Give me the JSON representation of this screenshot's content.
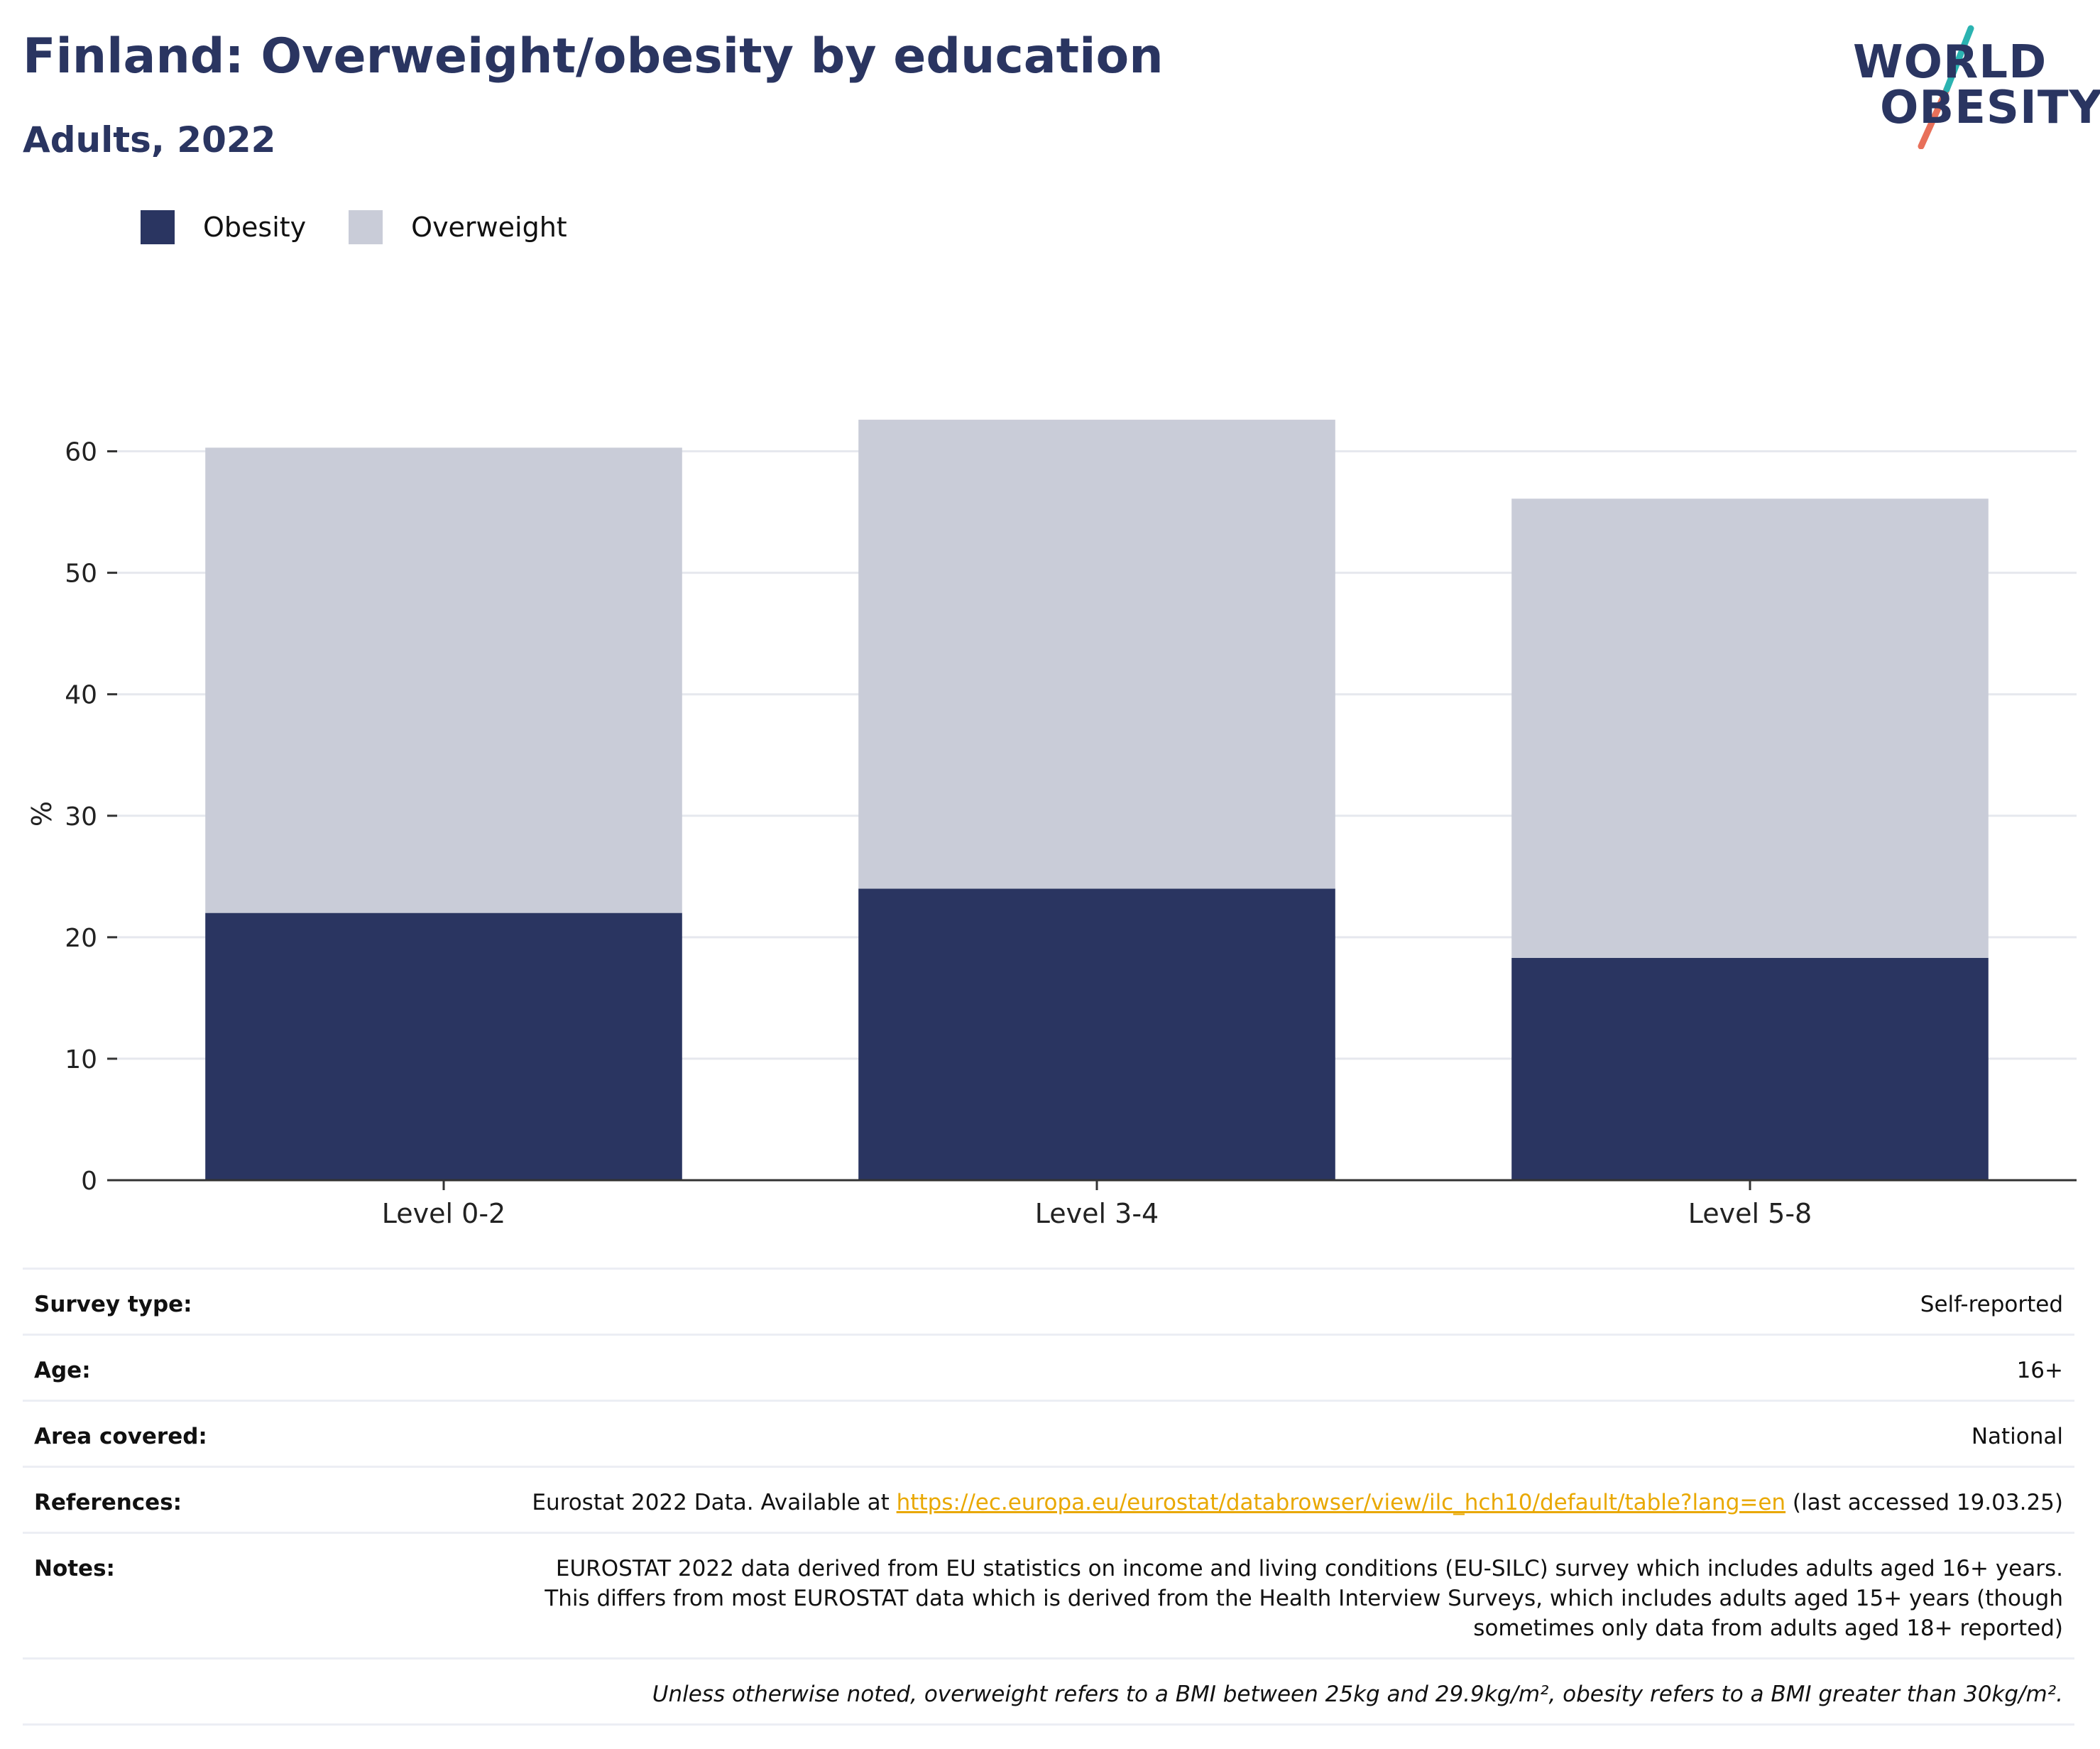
{
  "header": {
    "title": "Finland: Overweight/obesity by education",
    "subtitle": "Adults, 2022"
  },
  "logo": {
    "line1": "WORLD",
    "line2": "OBESITY"
  },
  "colors": {
    "obesity": "#2a3561",
    "overweight": "#c9ccd8",
    "title": "#2a3561",
    "link": "#e9a800",
    "logo_teal": "#2bb3b1",
    "logo_coral": "#e8705a"
  },
  "legend": [
    {
      "label": "Obesity",
      "color": "#2a3561"
    },
    {
      "label": "Overweight",
      "color": "#c9ccd8"
    }
  ],
  "chart_data": {
    "type": "bar",
    "stacked": true,
    "categories": [
      "Level 0-2",
      "Level 3-4",
      "Level 5-8"
    ],
    "series": [
      {
        "name": "Obesity",
        "values": [
          22.0,
          24.0,
          18.3
        ]
      },
      {
        "name": "Overweight",
        "values": [
          38.3,
          38.6,
          37.8
        ]
      }
    ],
    "ylabel": "%",
    "ylim": [
      0,
      65
    ],
    "yticks": [
      0,
      10,
      20,
      30,
      40,
      50,
      60
    ],
    "grid": true,
    "legend_position": "top-left"
  },
  "meta": {
    "survey_type": {
      "label": "Survey type:",
      "value": "Self-reported"
    },
    "age": {
      "label": "Age:",
      "value": "16+"
    },
    "area": {
      "label": "Area covered:",
      "value": "National"
    },
    "references": {
      "label": "References:",
      "prefix": "Eurostat 2022 Data. Available at ",
      "link": "https://ec.europa.eu/eurostat/databrowser/view/ilc_hch10/default/table?lang=en",
      "suffix": " (last accessed 19.03.25)"
    },
    "notes": {
      "label": "Notes:",
      "value": "EUROSTAT 2022 data derived from EU statistics on income and living conditions (EU-SILC) survey which includes adults aged 16+ years. This differs from most EUROSTAT data which is derived from the Health Interview Surveys, which includes adults aged 15+ years (though sometimes only data from adults aged 18+ reported)"
    },
    "footnote": "Unless otherwise noted, overweight refers to a BMI between 25kg and 29.9kg/m², obesity refers to a BMI greater than 30kg/m²."
  }
}
